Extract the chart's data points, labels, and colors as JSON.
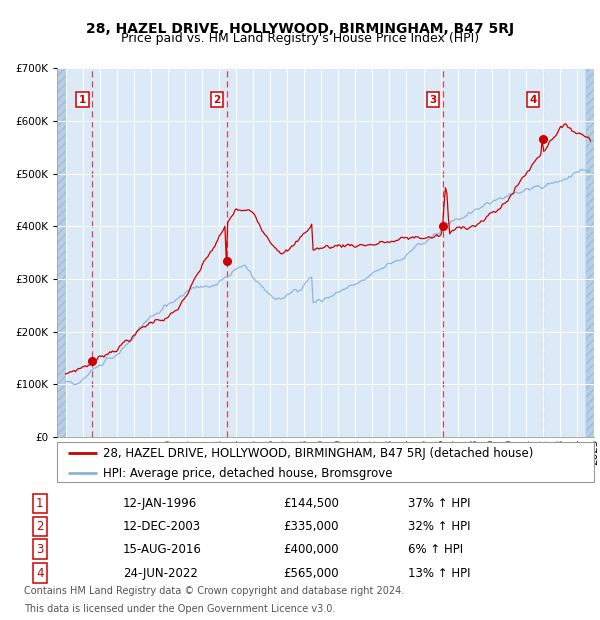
{
  "title": "28, HAZEL DRIVE, HOLLYWOOD, BIRMINGHAM, B47 5RJ",
  "subtitle": "Price paid vs. HM Land Registry's House Price Index (HPI)",
  "hpi_label": "HPI: Average price, detached house, Bromsgrove",
  "property_label": "28, HAZEL DRIVE, HOLLYWOOD, BIRMINGHAM, B47 5RJ (detached house)",
  "footer_line1": "Contains HM Land Registry data © Crown copyright and database right 2024.",
  "footer_line2": "This data is licensed under the Open Government Licence v3.0.",
  "transactions": [
    {
      "num": 1,
      "date": "12-JAN-1996",
      "price": 144500,
      "pct": "37%",
      "direction": "↑",
      "year_x": 1996.04
    },
    {
      "num": 2,
      "date": "12-DEC-2003",
      "price": 335000,
      "pct": "32%",
      "direction": "↑",
      "year_x": 2003.95
    },
    {
      "num": 3,
      "date": "15-AUG-2016",
      "price": 400000,
      "pct": "6%",
      "direction": "↑",
      "year_x": 2016.62
    },
    {
      "num": 4,
      "date": "24-JUN-2022",
      "price": 565000,
      "pct": "13%",
      "direction": "↑",
      "year_x": 2022.48
    }
  ],
  "ylim": [
    0,
    700000
  ],
  "xlim_start": 1994.0,
  "xlim_end": 2025.5,
  "background_color": "#dce9f7",
  "hatch_color": "#b8cfe8",
  "grid_color": "#ffffff",
  "red_line_color": "#cc0000",
  "blue_line_color": "#8ab4d8",
  "marker_color": "#cc0000",
  "vline_red_color": "#cc3333",
  "vline_blue_color": "#8ab4d8",
  "box_edge_color": "#cc0000",
  "title_fontsize": 10,
  "subtitle_fontsize": 9,
  "tick_fontsize": 7.5,
  "legend_fontsize": 8.5,
  "table_fontsize": 8.5,
  "footer_fontsize": 7
}
